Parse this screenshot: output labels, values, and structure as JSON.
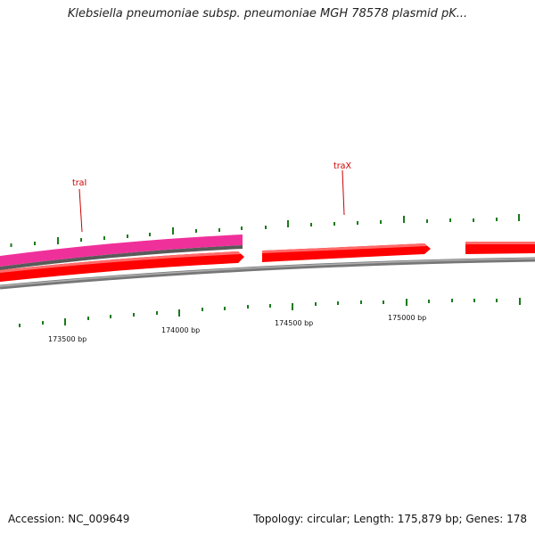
{
  "title": "Klebsiella pneumoniae subsp. pneumoniae MGH 78578 plasmid pK...",
  "colors": {
    "gene_forward": "#ff0000",
    "gene_pink": "#f0309a",
    "backbone": "#808080",
    "tick": "#1a7a1a",
    "label": "#cc0000"
  },
  "gene_labels": [
    {
      "id": "traI",
      "text": "traI"
    },
    {
      "id": "traX",
      "text": "traX"
    }
  ],
  "ticks": [
    {
      "bp": 173500,
      "label": "173500 bp"
    },
    {
      "bp": 174000,
      "label": "174000 bp"
    },
    {
      "bp": 174500,
      "label": "174500 bp"
    },
    {
      "bp": 175000,
      "label": "175000 bp"
    }
  ],
  "footer": {
    "accession": "Accession: NC_009649",
    "summary": "Topology: circular; Length: 175,879 bp; Genes: 178"
  }
}
